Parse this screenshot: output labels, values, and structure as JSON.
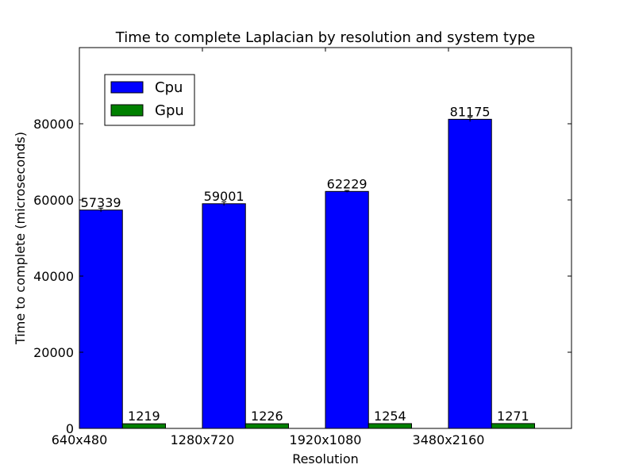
{
  "chart_data": {
    "type": "bar",
    "title": "Time to complete Laplacian by resolution and system type",
    "xlabel": "Resolution",
    "ylabel": "Time to complete (microseconds)",
    "categories": [
      "640x480",
      "1280x720",
      "1920x1080",
      "3480x2160"
    ],
    "series": [
      {
        "name": "Cpu",
        "color": "#0000ff",
        "values": [
          57339,
          59001,
          62229,
          81175
        ],
        "errors": [
          500,
          500,
          250,
          600
        ]
      },
      {
        "name": "Gpu",
        "color": "#008000",
        "values": [
          1219,
          1226,
          1254,
          1271
        ],
        "errors": [
          0,
          0,
          0,
          0
        ]
      }
    ],
    "ylim": [
      0,
      100000
    ],
    "yticks": [
      0,
      20000,
      40000,
      60000,
      80000
    ],
    "yticklabels": [
      "0",
      "20000",
      "40000",
      "60000",
      "80000"
    ],
    "grid": false,
    "legend_position": "top-left"
  }
}
